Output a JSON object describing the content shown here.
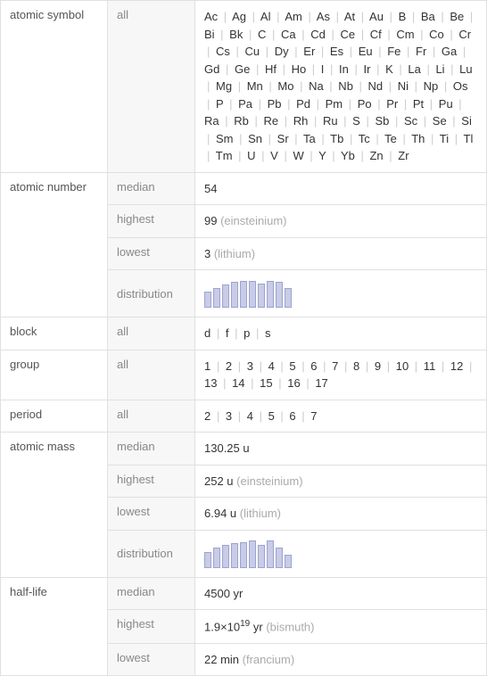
{
  "rows": [
    {
      "prop": "atomic symbol",
      "items": [
        {
          "stat": "all",
          "value_list": [
            "Ac",
            "Ag",
            "Al",
            "Am",
            "As",
            "At",
            "Au",
            "B",
            "Ba",
            "Be",
            "Bi",
            "Bk",
            "C",
            "Ca",
            "Cd",
            "Ce",
            "Cf",
            "Cm",
            "Co",
            "Cr",
            "Cs",
            "Cu",
            "Dy",
            "Er",
            "Es",
            "Eu",
            "Fe",
            "Fr",
            "Ga",
            "Gd",
            "Ge",
            "Hf",
            "Ho",
            "I",
            "In",
            "Ir",
            "K",
            "La",
            "Li",
            "Lu",
            "Mg",
            "Mn",
            "Mo",
            "Na",
            "Nb",
            "Nd",
            "Ni",
            "Np",
            "Os",
            "P",
            "Pa",
            "Pb",
            "Pd",
            "Pm",
            "Po",
            "Pr",
            "Pt",
            "Pu",
            "Ra",
            "Rb",
            "Re",
            "Rh",
            "Ru",
            "S",
            "Sb",
            "Sc",
            "Se",
            "Si",
            "Sm",
            "Sn",
            "Sr",
            "Ta",
            "Tb",
            "Tc",
            "Te",
            "Th",
            "Ti",
            "Tl",
            "Tm",
            "U",
            "V",
            "W",
            "Y",
            "Yb",
            "Zn",
            "Zr"
          ]
        }
      ]
    },
    {
      "prop": "atomic number",
      "items": [
        {
          "stat": "median",
          "value": "54"
        },
        {
          "stat": "highest",
          "value": "99",
          "note": "(einsteinium)"
        },
        {
          "stat": "lowest",
          "value": "3",
          "note": "(lithium)"
        },
        {
          "stat": "distribution",
          "hist": {
            "bars": [
              0.55,
              0.7,
              0.8,
              0.9,
              0.95,
              0.95,
              0.85,
              0.95,
              0.9,
              0.7
            ],
            "bar_fill": "#c8cce6",
            "bar_border": "#9ca3d0"
          }
        }
      ]
    },
    {
      "prop": "block",
      "items": [
        {
          "stat": "all",
          "value_list": [
            "d",
            "f",
            "p",
            "s"
          ]
        }
      ]
    },
    {
      "prop": "group",
      "items": [
        {
          "stat": "all",
          "value_list": [
            "1",
            "2",
            "3",
            "4",
            "5",
            "6",
            "7",
            "8",
            "9",
            "10",
            "11",
            "12",
            "13",
            "14",
            "15",
            "16",
            "17"
          ]
        }
      ]
    },
    {
      "prop": "period",
      "items": [
        {
          "stat": "all",
          "value_list": [
            "2",
            "3",
            "4",
            "5",
            "6",
            "7"
          ]
        }
      ]
    },
    {
      "prop": "atomic mass",
      "items": [
        {
          "stat": "median",
          "value": "130.25 u"
        },
        {
          "stat": "highest",
          "value": "252 u",
          "note": "(einsteinium)"
        },
        {
          "stat": "lowest",
          "value": "6.94 u",
          "note": "(lithium)"
        },
        {
          "stat": "distribution",
          "hist": {
            "bars": [
              0.55,
              0.7,
              0.8,
              0.85,
              0.9,
              0.95,
              0.8,
              0.95,
              0.7,
              0.45
            ],
            "bar_fill": "#c8cce6",
            "bar_border": "#9ca3d0"
          }
        }
      ]
    },
    {
      "prop": "half-life",
      "items": [
        {
          "stat": "median",
          "value": "4500 yr"
        },
        {
          "stat": "highest",
          "value_html": "1.9×10<span class=\"sup\">19</span> yr",
          "note": "(bismuth)"
        },
        {
          "stat": "lowest",
          "value": "22 min",
          "note": "(francium)"
        }
      ]
    }
  ],
  "separator": "|",
  "colors": {
    "border": "#e0e0e0",
    "stat_bg": "#f7f7f7",
    "stat_text": "#888888",
    "prop_text": "#555555",
    "note_text": "#aaaaaa",
    "sep_text": "#cccccc"
  }
}
